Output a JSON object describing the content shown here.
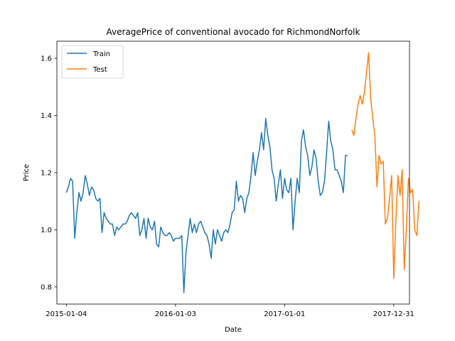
{
  "chart_data": {
    "type": "line",
    "title": "AveragePrice of conventional avocado for RichmondNorfolk",
    "xlabel": "Date",
    "ylabel": "Price",
    "x_tick_labels": [
      "2015-01-04",
      "2016-01-03",
      "2017-01-01",
      "2017-12-31"
    ],
    "y_tick_labels": [
      "0.8",
      "1.0",
      "1.2",
      "1.4",
      "1.6"
    ],
    "y_ticks": [
      0.8,
      1.0,
      1.2,
      1.4,
      1.6
    ],
    "ylim": [
      0.74,
      1.66
    ],
    "xlim_weeks": [
      -4.5,
      163.5
    ],
    "legend_position": "upper-left",
    "grid": false,
    "series": [
      {
        "name": "Train",
        "color": "#1f77b4",
        "start_week": 0,
        "values": [
          1.13,
          1.15,
          1.18,
          1.17,
          0.97,
          1.06,
          1.13,
          1.1,
          1.13,
          1.19,
          1.16,
          1.12,
          1.15,
          1.14,
          1.11,
          1.1,
          1.11,
          0.99,
          1.06,
          1.04,
          1.03,
          1.02,
          1.02,
          0.98,
          1.01,
          1.0,
          1.01,
          1.02,
          1.02,
          1.03,
          1.05,
          1.06,
          1.05,
          1.04,
          1.06,
          0.98,
          1.0,
          1.04,
          0.97,
          1.04,
          1.01,
          1.0,
          1.03,
          0.95,
          0.94,
          1.01,
          0.99,
          0.98,
          0.98,
          0.99,
          0.98,
          0.96,
          0.97,
          0.97,
          0.97,
          0.98,
          0.78,
          0.92,
          0.98,
          1.04,
          0.99,
          1.02,
          0.99,
          1.02,
          1.03,
          1.01,
          0.99,
          0.98,
          0.95,
          0.9,
          1.0,
          0.95,
          1.0,
          0.98,
          0.96,
          0.99,
          1.0,
          0.99,
          1.02,
          1.06,
          1.07,
          1.17,
          1.1,
          1.12,
          1.11,
          1.06,
          1.11,
          1.13,
          1.19,
          1.27,
          1.19,
          1.24,
          1.28,
          1.34,
          1.28,
          1.39,
          1.33,
          1.29,
          1.21,
          1.18,
          1.1,
          1.16,
          1.21,
          1.11,
          1.18,
          1.14,
          1.13,
          1.18,
          1.0,
          1.1,
          1.18,
          1.13,
          1.31,
          1.35,
          1.29,
          1.26,
          1.19,
          1.22,
          1.28,
          1.25,
          1.17,
          1.12,
          1.13,
          1.17,
          1.27,
          1.38,
          1.31,
          1.28,
          1.21,
          1.21,
          1.19,
          1.17,
          1.13,
          1.26,
          1.26
        ]
      },
      {
        "name": "Test",
        "color": "#ff7f0e",
        "start_week": 136,
        "values": [
          1.35,
          1.33,
          1.39,
          1.44,
          1.47,
          1.44,
          1.48,
          1.55,
          1.62,
          1.46,
          1.39,
          1.33,
          1.15,
          1.26,
          1.23,
          1.24,
          1.02,
          1.04,
          1.11,
          1.19,
          0.83,
          1.03,
          1.19,
          1.12,
          1.21,
          0.86,
          1.0,
          1.18,
          1.13,
          1.14,
          1.0,
          0.98,
          1.1
        ]
      }
    ]
  }
}
